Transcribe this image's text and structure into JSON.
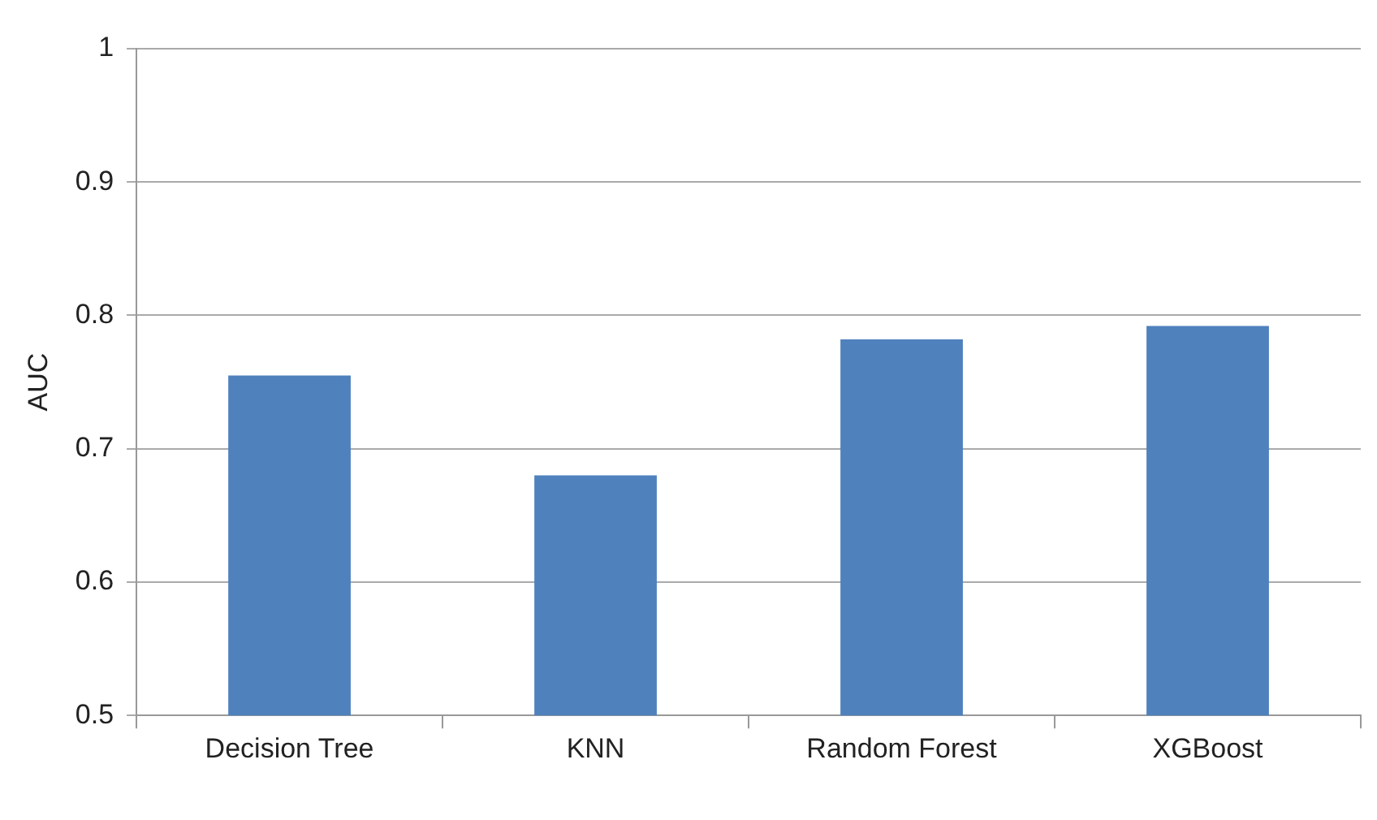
{
  "chart_data": {
    "type": "bar",
    "ylabel": "AUC",
    "categories": [
      "Decision Tree",
      "KNN",
      "Random Forest",
      "XGBoost"
    ],
    "values": [
      0.755,
      0.68,
      0.782,
      0.792
    ],
    "color": "#4f81bd",
    "ylim": [
      0.5,
      1
    ],
    "yticks": [
      0.5,
      0.6,
      0.7,
      0.8,
      0.9,
      1
    ],
    "grid": "y",
    "legend": false
  }
}
